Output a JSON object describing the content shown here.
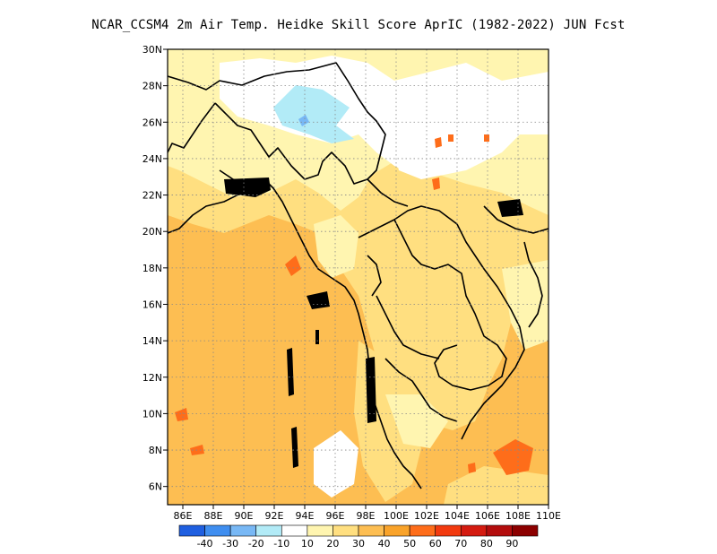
{
  "title": "NCAR_CCSM4  2m Air Temp. Heidke Skill Score AprIC (1982-2022) JUN Fcst",
  "map": {
    "lon_range": [
      85,
      110
    ],
    "lat_range": [
      5,
      30
    ],
    "x_ticks": [
      "86E",
      "88E",
      "90E",
      "92E",
      "94E",
      "96E",
      "98E",
      "100E",
      "102E",
      "104E",
      "106E",
      "108E",
      "110E"
    ],
    "y_ticks": [
      "6N",
      "8N",
      "10N",
      "12N",
      "14N",
      "16N",
      "18N",
      "20N",
      "22N",
      "24N",
      "26N",
      "28N",
      "30N"
    ],
    "gridlines": "dotted"
  },
  "colorbar": {
    "colors": [
      "#1f5fe0",
      "#3f8ef0",
      "#78b8f5",
      "#b2ebf7",
      "#ffffff",
      "#fff5b0",
      "#ffdf80",
      "#fdbe52",
      "#f9a32a",
      "#fe6d1a",
      "#f23a0f",
      "#d41b10",
      "#b30d0d",
      "#8c0000"
    ],
    "labels": [
      "-40",
      "-30",
      "-20",
      "-10",
      "10",
      "20",
      "30",
      "40",
      "50",
      "60",
      "70",
      "80",
      "90"
    ]
  }
}
